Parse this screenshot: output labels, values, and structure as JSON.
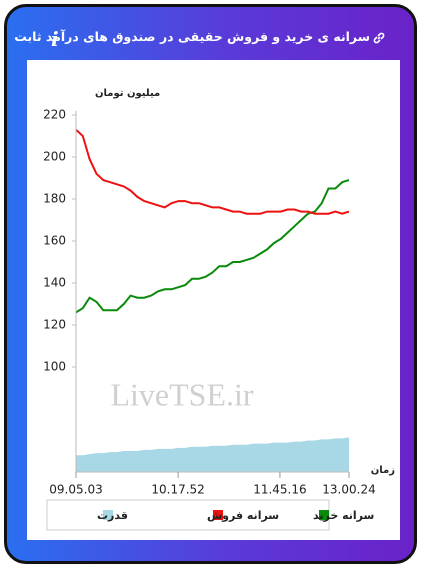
{
  "title": "سرانه ی خرید و فروش حقیقی در صندوق های درآمد ثابت",
  "chart_data": {
    "type": "line",
    "y_label": "میلیون تومان",
    "x_label": "زمان",
    "watermark": "LiveTSE.ir",
    "x": [
      0,
      2.5,
      5,
      7.5,
      10,
      12.5,
      15,
      17.5,
      20,
      22.5,
      25,
      27.5,
      30,
      32.5,
      35,
      37.5,
      40,
      42.5,
      45,
      47.5,
      50,
      52.5,
      55,
      57.5,
      60,
      62.5,
      65,
      67.5,
      70,
      72.5,
      75,
      77.5,
      80,
      82.5,
      85,
      87.5,
      90,
      92.5,
      95,
      97.5,
      100
    ],
    "series": [
      {
        "name": "سرانه خرید",
        "color": "#0a8a0a",
        "values": [
          126,
          128,
          133,
          131,
          127,
          127,
          127,
          130,
          134,
          133,
          133,
          134,
          136,
          137,
          137,
          138,
          139,
          142,
          142,
          143,
          145,
          148,
          148,
          150,
          150,
          151,
          152,
          154,
          156,
          159,
          161,
          164,
          167,
          170,
          173,
          174,
          178,
          185,
          185,
          188,
          189
        ]
      },
      {
        "name": "سرانه فروش",
        "color": "#ee1111",
        "values": [
          213,
          210,
          199,
          192,
          189,
          188,
          187,
          186,
          184,
          181,
          179,
          178,
          177,
          176,
          178,
          179,
          179,
          178,
          178,
          177,
          176,
          176,
          175,
          174,
          174,
          173,
          173,
          173,
          174,
          174,
          174,
          175,
          175,
          174,
          174,
          173,
          173,
          173,
          174,
          173,
          174
        ]
      },
      {
        "name": "قدرت",
        "color": "#a8d8e6",
        "type": "area",
        "values": [
          58,
          58,
          58.5,
          59,
          59,
          59.5,
          59.5,
          60,
          60,
          60,
          60.5,
          60.5,
          61,
          61,
          61,
          61.5,
          61.5,
          62,
          62,
          62,
          62.5,
          62.5,
          62.5,
          63,
          63,
          63,
          63.5,
          63.5,
          63.5,
          64,
          64,
          64,
          64.5,
          64.5,
          65,
          65,
          65.5,
          65.5,
          66,
          66,
          66.5
        ]
      }
    ],
    "xlim": [
      0,
      100
    ],
    "xticks": [
      {
        "value": 0,
        "label": "09.05.03"
      },
      {
        "value": 37.4,
        "label": "10.17.52"
      },
      {
        "value": 74.7,
        "label": "11.45.16"
      },
      {
        "value": 100,
        "label": "13.00.24"
      }
    ],
    "ylim": [
      50,
      222
    ],
    "yticks": [
      100,
      120,
      140,
      160,
      180,
      200,
      220
    ],
    "grid": false
  }
}
